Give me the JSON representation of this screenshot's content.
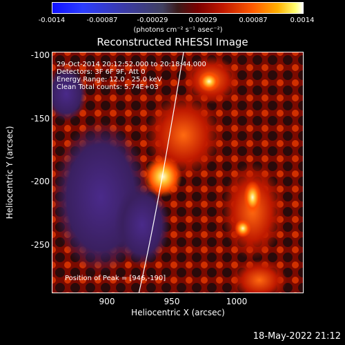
{
  "colorbar": {
    "ticks": [
      "-0.0014",
      "-0.00087",
      "-0.00029",
      "0.00029",
      "0.00087",
      "0.0014"
    ],
    "unit": "(photons cm⁻² s⁻¹ asec⁻²)"
  },
  "plot": {
    "title": "Reconstructed RHESSI Image",
    "annotation": {
      "line1": "29-Oct-2014 20:12:52.000 to 20:18:44.000",
      "line2": "Detectors: 3F 6F 9F, Att 0",
      "line3": "Energy Range: 12.0 - 25.0 keV",
      "line4": "Clean    Total counts: 5.74E+03"
    },
    "peak": "Position of Peak = [946,-190]",
    "xlabel": "Heliocentric X (arcsec)",
    "ylabel": "Heliocentric Y (arcsec)",
    "xticks": [
      "900",
      "950",
      "1000"
    ],
    "yticks": [
      "-100",
      "-150",
      "-200",
      "-250"
    ]
  },
  "footer": {
    "timestamp": "18-May-2022 21:12"
  },
  "colors": {
    "background": "#000000",
    "limb": "#ffffff"
  }
}
